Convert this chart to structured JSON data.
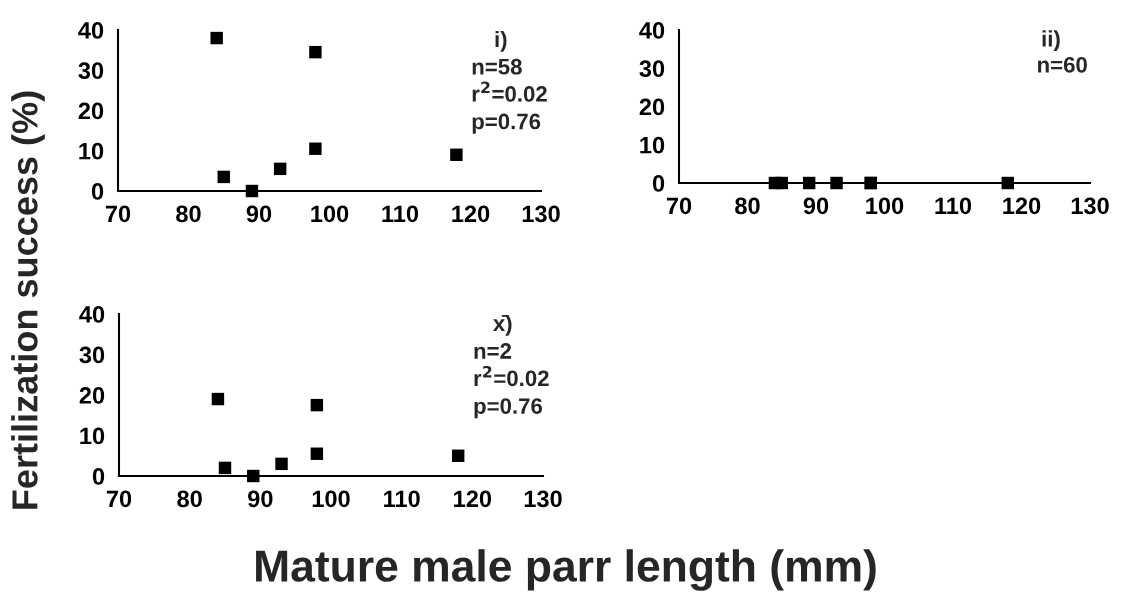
{
  "chart_data": [
    {
      "type": "scatter",
      "xlabel": "Mature male parr length (mm)",
      "ylabel": "Fertilization success (%)",
      "x": [
        84,
        85,
        89,
        93,
        98,
        98,
        118
      ],
      "values": [
        38,
        3.5,
        0,
        5.5,
        34.5,
        10.5,
        9
      ],
      "color": "#000000",
      "marker": "square",
      "xlim": [
        70,
        130
      ],
      "xticks": [
        70,
        80,
        90,
        100,
        110,
        120,
        130
      ],
      "ylim": [
        0,
        40
      ],
      "yticks": [
        0,
        10,
        20,
        30,
        40
      ],
      "grid": false,
      "annotations": [
        "i)",
        "n=58",
        "r$^{2}$=0.02",
        "p=0.76"
      ]
    },
    {
      "type": "scatter",
      "x": [
        84,
        85,
        89,
        93,
        98,
        98,
        118
      ],
      "values": [
        0,
        0,
        0,
        0,
        0,
        0,
        0
      ],
      "color": "#000000",
      "marker": "square",
      "xlim": [
        70,
        130
      ],
      "xticks": [
        70,
        80,
        90,
        100,
        110,
        120,
        130
      ],
      "ylim": [
        0,
        40
      ],
      "yticks": [
        0,
        10,
        20,
        30,
        40
      ],
      "grid": false,
      "annotations": [
        "ii)",
        "n=60"
      ]
    },
    {
      "type": "scatter",
      "x": [
        84,
        85,
        89,
        93,
        98,
        98,
        118
      ],
      "values": [
        19,
        2,
        0,
        3,
        17.5,
        5.5,
        5
      ],
      "color": "#000000",
      "marker": "square",
      "xlim": [
        70,
        130
      ],
      "xticks": [
        70,
        80,
        90,
        100,
        110,
        120,
        130
      ],
      "ylim": [
        0,
        40
      ],
      "yticks": [
        0,
        10,
        20,
        30,
        40
      ],
      "grid": false,
      "annotations": [
        "x̄)",
        "n=2",
        "r$^{2}$=0.02",
        "p=0.76"
      ]
    }
  ]
}
